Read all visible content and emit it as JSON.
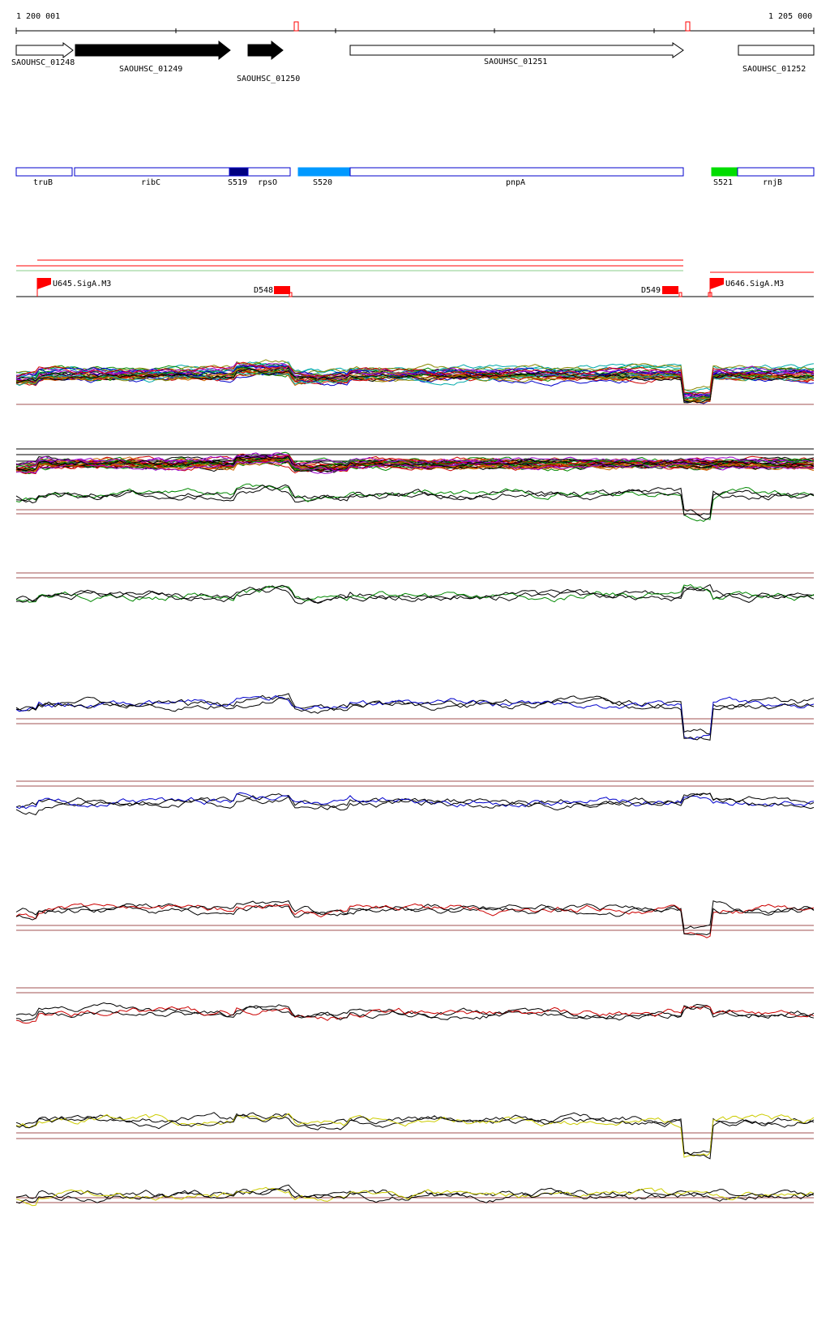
{
  "ruler": {
    "start_label": "1 200 001",
    "end_label": "1 205 000"
  },
  "genes": [
    {
      "id": "SAOUHSC_01248",
      "label": "SAOUHSC_01248",
      "fill": "open",
      "strand": "+"
    },
    {
      "id": "SAOUHSC_01249",
      "label": "SAOUHSC_01249",
      "fill": "solid",
      "strand": "+"
    },
    {
      "id": "SAOUHSC_01250",
      "label": "SAOUHSC_01250",
      "fill": "solid",
      "strand": "+"
    },
    {
      "id": "SAOUHSC_01251",
      "label": "SAOUHSC_01251",
      "fill": "open",
      "strand": "+"
    },
    {
      "id": "SAOUHSC_01252",
      "label": "SAOUHSC_01252",
      "fill": "open",
      "strand": "+"
    }
  ],
  "features": [
    {
      "label": "truB",
      "kind": "box"
    },
    {
      "label": "ribC",
      "kind": "box"
    },
    {
      "label": "S519",
      "kind": "filled",
      "color": "#000080"
    },
    {
      "label": "rpsO",
      "kind": "box"
    },
    {
      "label": "S520",
      "kind": "filled",
      "color": "#0099ff"
    },
    {
      "label": "pnpA",
      "kind": "box"
    },
    {
      "label": "S521",
      "kind": "filled",
      "color": "#00dd00"
    },
    {
      "label": "rnjB",
      "kind": "box"
    }
  ],
  "regulatory": [
    {
      "label": "U645.SigA.M3",
      "kind": "promoter-flag"
    },
    {
      "label": "D548",
      "kind": "terminator"
    },
    {
      "label": "D549",
      "kind": "terminator"
    },
    {
      "label": "U646.SigA.M3",
      "kind": "promoter-flag"
    }
  ],
  "colors": {
    "gene_outline": "#000000",
    "feature_outline": "#0000cc",
    "regulatory": "#ff0000",
    "threshold": "#a05050",
    "track_green": "#008800",
    "track_blue": "#0000cc",
    "track_red": "#cc0000",
    "track_yellow": "#cccc00"
  },
  "tracks": [
    {
      "name": "expression-heatmap-multi",
      "series_colors": [
        "#000000",
        "#cc0000",
        "#008800",
        "#0000cc",
        "#cc6600",
        "#9900cc",
        "#00aaaa",
        "#888800"
      ]
    },
    {
      "name": "expression-multi-2",
      "series_colors": [
        "#000000",
        "#cc0000",
        "#008800",
        "#cc6600",
        "#9900cc"
      ]
    },
    {
      "name": "green-strand-1",
      "series_colors": [
        "#000000",
        "#008800"
      ]
    },
    {
      "name": "green-strand-2",
      "series_colors": [
        "#000000",
        "#008800"
      ]
    },
    {
      "name": "blue-strand-1",
      "series_colors": [
        "#000000",
        "#0000cc"
      ]
    },
    {
      "name": "blue-strand-2",
      "series_colors": [
        "#000000",
        "#0000cc"
      ]
    },
    {
      "name": "red-strand-1",
      "series_colors": [
        "#000000",
        "#cc0000"
      ]
    },
    {
      "name": "red-strand-2",
      "series_colors": [
        "#000000",
        "#cc0000"
      ]
    },
    {
      "name": "yellow-strand-1",
      "series_colors": [
        "#000000",
        "#cccc00"
      ]
    },
    {
      "name": "yellow-strand-2",
      "series_colors": [
        "#000000",
        "#cccc00"
      ]
    }
  ]
}
